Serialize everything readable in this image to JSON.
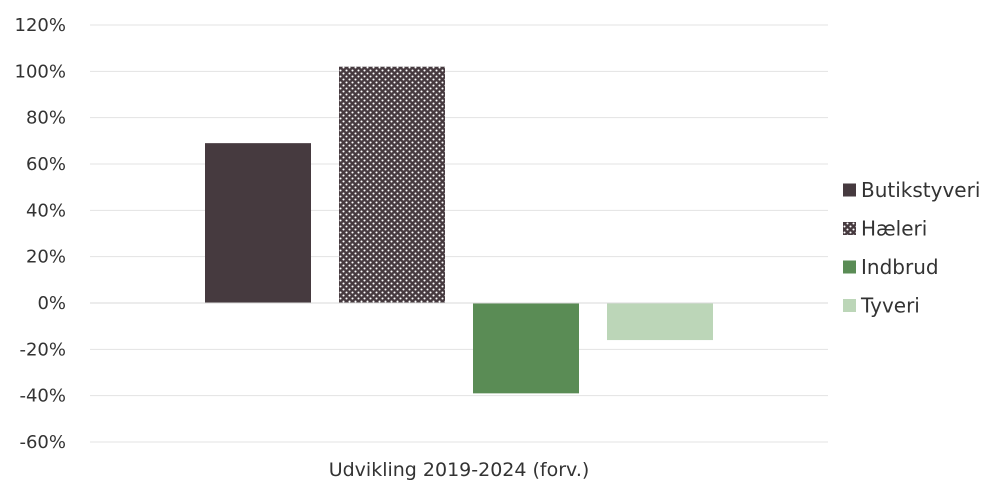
{
  "chart_data": {
    "type": "bar",
    "categories": [
      "Udvikling 2019-2024 (forv.)"
    ],
    "series": [
      {
        "name": "Butikstyveri",
        "values": [
          69
        ],
        "color": "#463a3f",
        "pattern": "solid"
      },
      {
        "name": "Hæleri",
        "values": [
          102
        ],
        "color": "#463a3f",
        "pattern": "dots"
      },
      {
        "name": "Indbrud",
        "values": [
          -39
        ],
        "color": "#5a8c55",
        "pattern": "solid"
      },
      {
        "name": "Tyveri",
        "values": [
          -16
        ],
        "color": "#bcd6b8",
        "pattern": "solid"
      }
    ],
    "yticks": [
      "120%",
      "100%",
      "80%",
      "60%",
      "40%",
      "20%",
      "0%",
      "-20%",
      "-40%",
      "-60%"
    ],
    "ylim": [
      -60,
      120
    ],
    "y_unit": "%",
    "grid": true,
    "legend_position": "right",
    "title": "",
    "xlabel": "",
    "ylabel": ""
  }
}
